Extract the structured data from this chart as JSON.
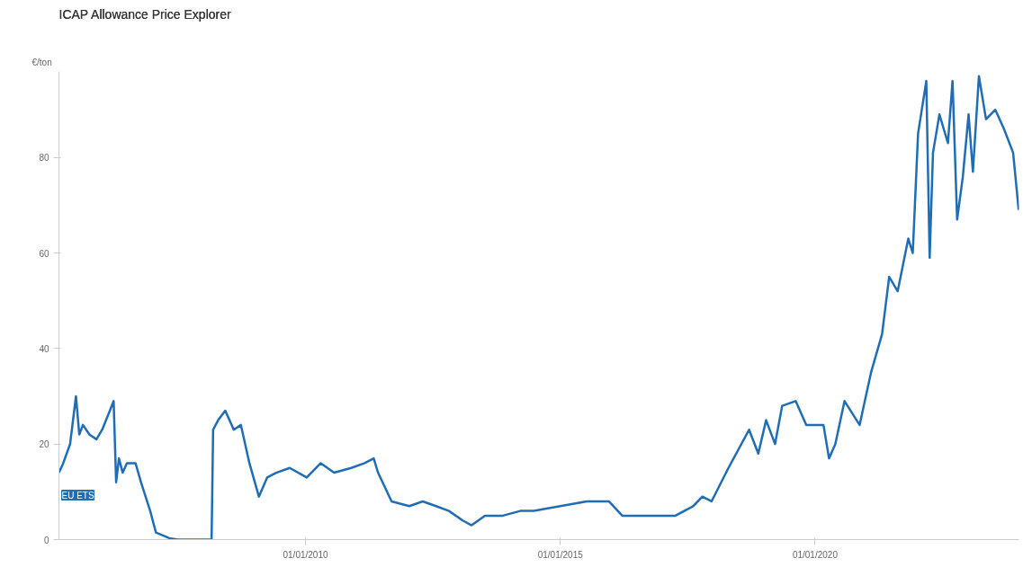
{
  "chart_data": {
    "type": "line",
    "title": "ICAP Allowance Price Explorer",
    "ylabel": "€/ton",
    "x": [
      "2005-03-01",
      "2005-04-01",
      "2005-05-20",
      "2005-07-01",
      "2005-07-25",
      "2005-08-20",
      "2005-10-05",
      "2005-11-25",
      "2006-01-05",
      "2006-03-01",
      "2006-03-28",
      "2006-04-15",
      "2006-05-05",
      "2006-06-01",
      "2006-07-01",
      "2006-09-01",
      "2006-10-10",
      "2006-12-15",
      "2007-01-25",
      "2007-05-01",
      "2007-07-01",
      "2008-02-28",
      "2008-03-10",
      "2008-04-15",
      "2008-06-05",
      "2008-08-05",
      "2008-09-25",
      "2008-11-25",
      "2009-02-01",
      "2009-04-01",
      "2009-06-05",
      "2009-09-10",
      "2010-01-10",
      "2010-04-20",
      "2010-07-25",
      "2010-11-25",
      "2011-03-01",
      "2011-05-05",
      "2011-06-05",
      "2011-09-10",
      "2012-01-15",
      "2012-04-20",
      "2012-07-25",
      "2012-10-25",
      "2013-02-01",
      "2013-04-05",
      "2013-07-10",
      "2013-11-15",
      "2014-03-20",
      "2014-06-25",
      "2015-01-01",
      "2015-07-10",
      "2015-12-15",
      "2016-03-20",
      "2016-07-25",
      "2016-12-01",
      "2017-04-05",
      "2017-08-10",
      "2017-10-15",
      "2017-12-20",
      "2018-04-20",
      "2018-09-15",
      "2018-11-20",
      "2019-01-15",
      "2019-03-20",
      "2019-05-10",
      "2019-08-15",
      "2019-10-30",
      "2020-03-01",
      "2020-04-10",
      "2020-05-25",
      "2020-07-30",
      "2020-11-15",
      "2021-02-05",
      "2021-04-25",
      "2021-06-15",
      "2021-08-15",
      "2021-10-30",
      "2021-12-01",
      "2022-01-08",
      "2022-03-08",
      "2022-04-01",
      "2022-04-25",
      "2022-06-10",
      "2022-08-10",
      "2022-09-12",
      "2022-10-15",
      "2022-11-25",
      "2023-01-05",
      "2023-02-05",
      "2023-03-20",
      "2023-05-10",
      "2023-07-15",
      "2023-09-15",
      "2023-11-20",
      "2023-12-30"
    ],
    "series": [
      {
        "name": "EU ETS",
        "color": "#1f6db5",
        "values": [
          14,
          16,
          20,
          30,
          22,
          24,
          22,
          21,
          23,
          27,
          29,
          12,
          17,
          14,
          16,
          16,
          12,
          6,
          1.5,
          0.3,
          0,
          0,
          23,
          25,
          27,
          23,
          24,
          16,
          9,
          13,
          14,
          15,
          13,
          16,
          14,
          15,
          16,
          17,
          14,
          8,
          7,
          8,
          7,
          6,
          4,
          3,
          5,
          5,
          6,
          6,
          7,
          8,
          8,
          5,
          5,
          5,
          5,
          7,
          9,
          8,
          15,
          23,
          18,
          25,
          20,
          28,
          29,
          24,
          24,
          17,
          20,
          29,
          24,
          35,
          43,
          55,
          52,
          63,
          60,
          85,
          96,
          59,
          81,
          89,
          83,
          96,
          67,
          76,
          89,
          77,
          97,
          88,
          90,
          86,
          81,
          69
        ]
      }
    ],
    "xlim": [
      "2005-03-01",
      "2024-01-01"
    ],
    "xticks": [
      {
        "value": "2010-01-01",
        "label": "01/01/2010"
      },
      {
        "value": "2015-01-01",
        "label": "01/01/2015"
      },
      {
        "value": "2020-01-01",
        "label": "01/01/2020"
      }
    ],
    "ylim": [
      0,
      98
    ],
    "yticks": [
      0,
      20,
      40,
      60,
      80
    ],
    "grid": false,
    "legend": false,
    "marker": "none",
    "line_style": "solid"
  }
}
